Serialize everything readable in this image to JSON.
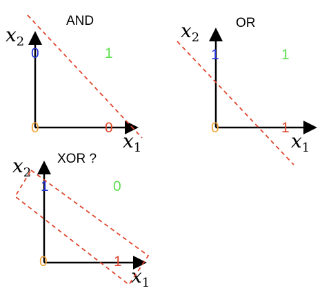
{
  "colors": {
    "blue": "#2433d6",
    "green": "#5ee04e",
    "orange": "#f0a43a",
    "red": "#e0452b",
    "dashed": "#e0452b",
    "axis": "#000000"
  },
  "and_plot": {
    "title": "AND",
    "x_label": "x",
    "x_sub": "1",
    "y_label": "x",
    "y_sub": "2",
    "values": [
      "0",
      "1",
      "0",
      "0"
    ]
  },
  "or_plot": {
    "title": "OR",
    "x_label": "x",
    "x_sub": "1",
    "y_label": "x",
    "y_sub": "2",
    "values": [
      "1",
      "1",
      "0",
      "1"
    ]
  },
  "xor_plot": {
    "title": "XOR ?",
    "x_label": "x",
    "x_sub": "1",
    "y_label": "x",
    "y_sub": "2",
    "values": [
      "1",
      "0",
      "0",
      "1"
    ]
  }
}
